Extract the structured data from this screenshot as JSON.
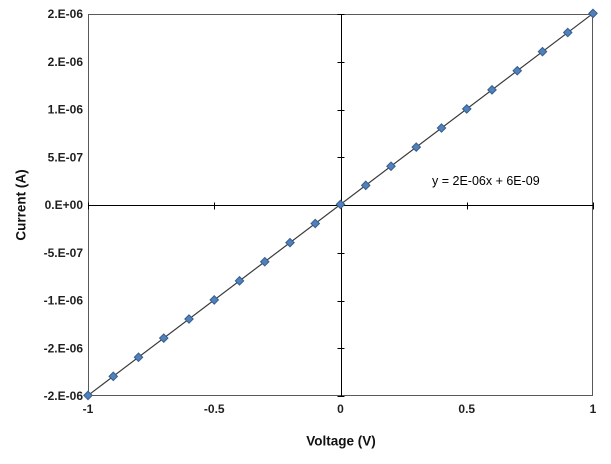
{
  "chart_data": {
    "type": "scatter",
    "title": "",
    "xlabel": "Voltage (V)",
    "ylabel": "Current (A)",
    "xlim": [
      -1,
      1
    ],
    "ylim": [
      -2e-06,
      2e-06
    ],
    "grid": false,
    "legend_position": "none",
    "x": [
      -1,
      -0.9,
      -0.8,
      -0.7,
      -0.6,
      -0.5,
      -0.4,
      -0.3,
      -0.2,
      -0.1,
      0,
      0.1,
      0.2,
      0.3,
      0.4,
      0.5,
      0.6,
      0.7,
      0.8,
      0.9,
      1
    ],
    "y": [
      -1.994e-06,
      -1.794e-06,
      -1.594e-06,
      -1.394e-06,
      -1.194e-06,
      -9.94e-07,
      -7.94e-07,
      -5.94e-07,
      -3.94e-07,
      -1.94e-07,
      6e-09,
      2.06e-07,
      4.06e-07,
      6.06e-07,
      8.06e-07,
      1.006e-06,
      1.206e-06,
      1.406e-06,
      1.606e-06,
      1.806e-06,
      2.006e-06
    ],
    "x_ticks": [
      -1,
      -0.5,
      0,
      0.5,
      1
    ],
    "x_tick_labels": [
      "-1",
      "-0.5",
      "0",
      "0.5",
      "1"
    ],
    "y_ticks": [
      2e-06,
      1.5e-06,
      1e-06,
      5e-07,
      0,
      -5e-07,
      -1e-06,
      -1.5e-06,
      -2e-06
    ],
    "y_tick_labels": [
      "2.E-06",
      "2.E-06",
      "1.E-06",
      "5.E-07",
      "0.E+00",
      "-5.E-07",
      "-1.E-06",
      "-2.E-06",
      "-2.E-06"
    ],
    "trendline": {
      "slope": 2e-06,
      "intercept": 6e-09,
      "label": "y = 2E-06x + 6E-09"
    },
    "marker": {
      "shape": "diamond",
      "fill": "#4f81bd",
      "edge": "#385d8a"
    },
    "line_color": "#3a3a3a",
    "axis_color": "#000000",
    "border_color": "#595959"
  }
}
